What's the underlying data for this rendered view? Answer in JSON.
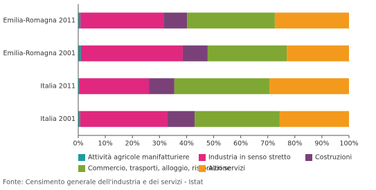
{
  "chart_data": {
    "type": "stacked-barh",
    "categories": [
      "Emilia-Romagna 2011",
      "Emilia-Romagna 2001",
      "Italia 2011",
      "Italia 2001"
    ],
    "series": [
      {
        "name": "Attività agricole manifatturiere",
        "color": "#1b9d9b",
        "values": [
          0.8,
          1.0,
          0.5,
          0.7
        ]
      },
      {
        "name": "Industria in senso stretto",
        "color": "#e0287f",
        "values": [
          30.7,
          37.6,
          25.6,
          32.3
        ]
      },
      {
        "name": "Costruzioni",
        "color": "#7a4179",
        "values": [
          8.7,
          9.2,
          9.4,
          10.0
        ]
      },
      {
        "name": "Commercio, trasporti, alloggio, ristorazione",
        "color": "#7fa734",
        "values": [
          32.4,
          29.2,
          35.1,
          31.4
        ]
      },
      {
        "name": "Altri servizi",
        "color": "#f39a1c",
        "values": [
          27.4,
          23.0,
          29.4,
          25.6
        ]
      }
    ],
    "xlim": [
      0,
      100
    ],
    "xticks": [
      {
        "value": 0,
        "label": "0%"
      },
      {
        "value": 10,
        "label": "10%"
      },
      {
        "value": 20,
        "label": "20%"
      },
      {
        "value": 30,
        "label": "30%"
      },
      {
        "value": 40,
        "label": "40%"
      },
      {
        "value": 50,
        "label": "50%"
      },
      {
        "value": 60,
        "label": "60%"
      },
      {
        "value": 70,
        "label": "70%"
      },
      {
        "value": 80,
        "label": "80%"
      },
      {
        "value": 90,
        "label": "90%"
      },
      {
        "value": 100,
        "label": "100%"
      }
    ],
    "source": "Fonte: Censimento generale dell'industria e dei servizi - Istat"
  }
}
